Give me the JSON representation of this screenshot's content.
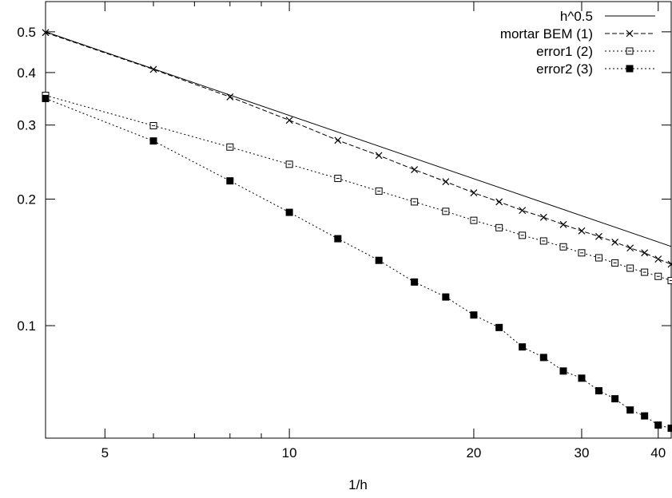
{
  "chart_data": {
    "type": "line",
    "title": "",
    "xlabel": "1/h",
    "ylabel": "",
    "xscale": "log",
    "yscale": "log",
    "xlim": [
      4,
      42
    ],
    "ylim": [
      0.054,
      0.59
    ],
    "grid": false,
    "legend_position": "top-right",
    "x_ticks": [
      {
        "value": 5,
        "label": "5"
      },
      {
        "value": 10,
        "label": "10"
      },
      {
        "value": 20,
        "label": "20"
      },
      {
        "value": 30,
        "label": "30"
      },
      {
        "value": 40,
        "label": "40"
      }
    ],
    "x_minor_ticks": [
      6,
      7,
      8,
      9
    ],
    "y_ticks": [
      {
        "value": 0.1,
        "label": "0.1"
      },
      {
        "value": 0.2,
        "label": "0.2"
      },
      {
        "value": 0.3,
        "label": "0.3"
      },
      {
        "value": 0.4,
        "label": "0.4"
      },
      {
        "value": 0.5,
        "label": "0.5"
      }
    ],
    "series": [
      {
        "name": "h^0.5",
        "style": "solid",
        "marker": "none",
        "x": [
          4,
          42
        ],
        "values": [
          0.5,
          0.1543
        ]
      },
      {
        "name": "mortar BEM (1)",
        "style": "dashed",
        "marker": "cross",
        "x": [
          4,
          6,
          8,
          10,
          12,
          14,
          16,
          18,
          20,
          22,
          24,
          26,
          28,
          30,
          32,
          34,
          36,
          38,
          40,
          42
        ],
        "values": [
          0.498,
          0.407,
          0.35,
          0.308,
          0.276,
          0.254,
          0.235,
          0.22,
          0.207,
          0.197,
          0.188,
          0.181,
          0.174,
          0.168,
          0.163,
          0.158,
          0.153,
          0.149,
          0.144,
          0.14
        ]
      },
      {
        "name": "error1 (2)",
        "style": "dotted",
        "marker": "open-square",
        "x": [
          4,
          6,
          8,
          10,
          12,
          14,
          16,
          18,
          20,
          22,
          24,
          26,
          28,
          30,
          32,
          34,
          36,
          38,
          40,
          42
        ],
        "values": [
          0.353,
          0.299,
          0.266,
          0.242,
          0.224,
          0.209,
          0.197,
          0.187,
          0.178,
          0.171,
          0.164,
          0.159,
          0.154,
          0.149,
          0.145,
          0.141,
          0.137,
          0.134,
          0.131,
          0.128
        ]
      },
      {
        "name": "error2 (3)",
        "style": "dotted",
        "marker": "filled-square",
        "x": [
          4,
          6,
          8,
          10,
          12,
          14,
          16,
          18,
          20,
          22,
          24,
          26,
          28,
          30,
          32,
          34,
          36,
          38,
          40,
          42
        ],
        "values": [
          0.347,
          0.275,
          0.221,
          0.186,
          0.161,
          0.143,
          0.127,
          0.117,
          0.106,
          0.099,
          0.089,
          0.084,
          0.078,
          0.075,
          0.07,
          0.067,
          0.063,
          0.061,
          0.058,
          0.057
        ]
      }
    ]
  }
}
